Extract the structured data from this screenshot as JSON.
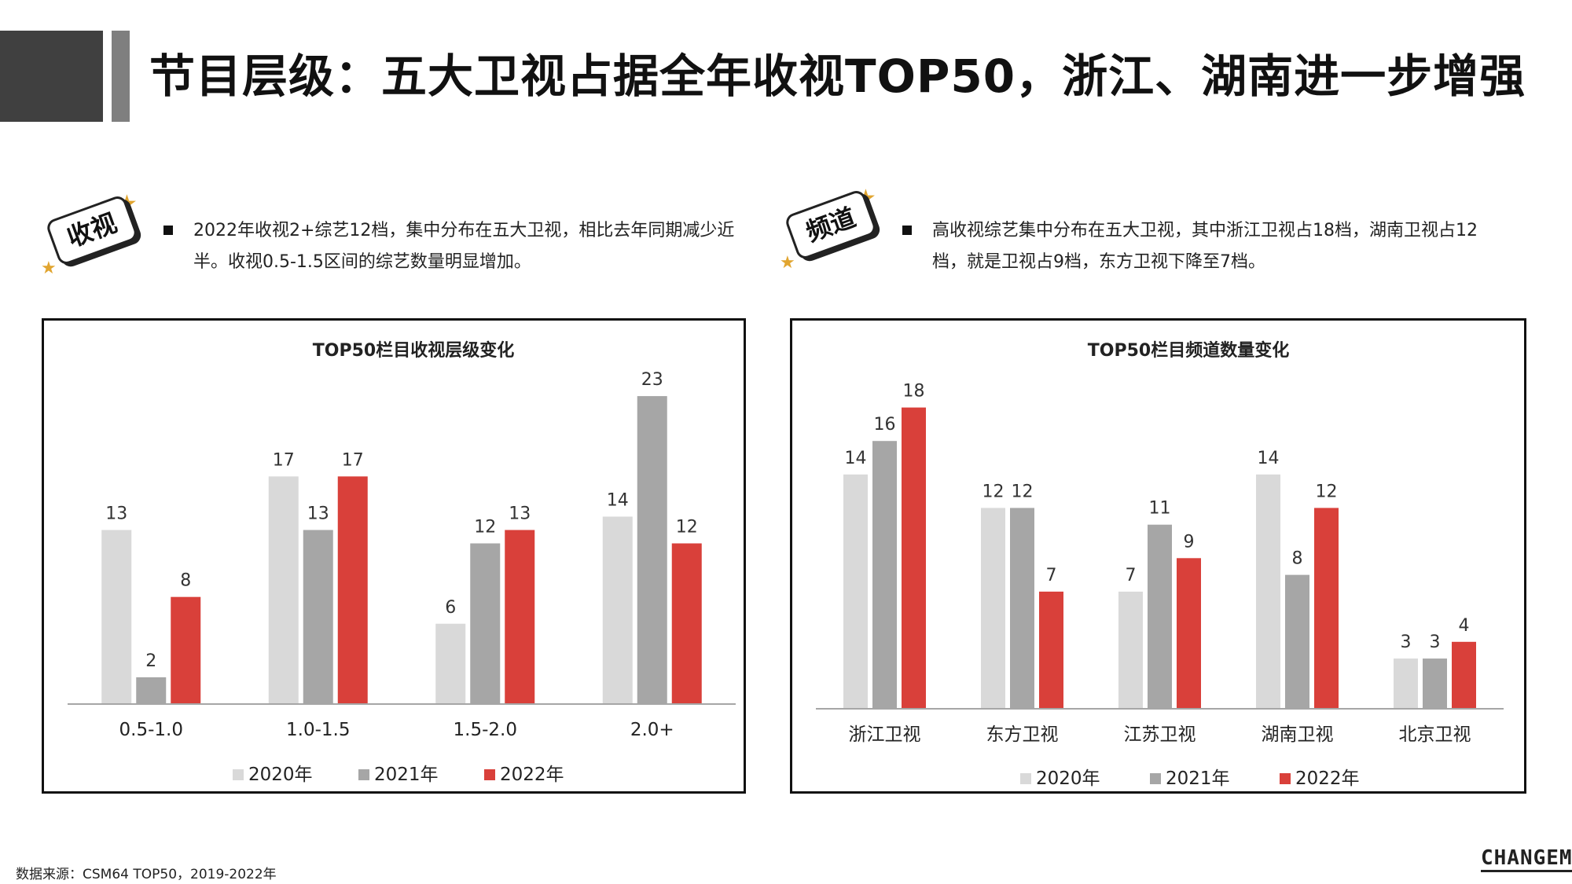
{
  "title": "节目层级：五大卫视占据全年收视TOP50，浙江、湖南进一步增强",
  "left_section": {
    "badge": "收视",
    "bullet_lines": [
      "2022年收视2+综艺12档，集中分布在五大卫视，相比去年同期减少近",
      "半。收视0.5-1.5区间的综艺数量明显增加。"
    ]
  },
  "right_section": {
    "badge": "频道",
    "bullet_lines": [
      "高收视综艺集中分布在五大卫视，其中浙江卫视占18档，湖南卫视占12",
      "档，就是卫视占9档，东方卫视下降至7档。"
    ]
  },
  "colors": {
    "s2020": "#d9d9d9",
    "s2021": "#a6a6a6",
    "s2022": "#d9403a",
    "axis": "#a6a6a6"
  },
  "chart_data": [
    {
      "type": "bar",
      "title": "TOP50栏目收视层级变化",
      "categories": [
        "0.5-1.0",
        "1.0-1.5",
        "1.5-2.0",
        "2.0+"
      ],
      "series": [
        {
          "name": "2020年",
          "values": [
            13,
            17,
            6,
            14
          ]
        },
        {
          "name": "2021年",
          "values": [
            2,
            13,
            12,
            23
          ]
        },
        {
          "name": "2022年",
          "values": [
            8,
            17,
            13,
            12
          ]
        }
      ],
      "ylim": [
        0,
        25
      ],
      "grid": false,
      "legend": "bottom"
    },
    {
      "type": "bar",
      "title": "TOP50栏目频道数量变化",
      "categories": [
        "浙江卫视",
        "东方卫视",
        "江苏卫视",
        "湖南卫视",
        "北京卫视"
      ],
      "series": [
        {
          "name": "2020年",
          "values": [
            14,
            12,
            7,
            14,
            3
          ]
        },
        {
          "name": "2021年",
          "values": [
            16,
            12,
            11,
            8,
            3
          ]
        },
        {
          "name": "2022年",
          "values": [
            18,
            7,
            9,
            12,
            4
          ]
        }
      ],
      "ylim": [
        0,
        20
      ],
      "grid": false,
      "legend": "bottom"
    }
  ],
  "footer": {
    "source": "数据来源：CSM64 TOP50，2019-2022年",
    "logo": "CHANGEMO"
  }
}
